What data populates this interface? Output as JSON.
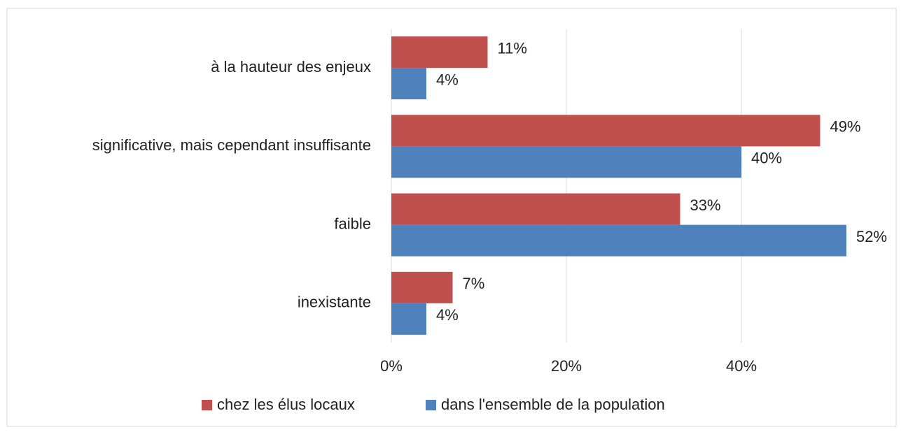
{
  "chart_data": {
    "type": "barh",
    "categories": [
      "à la hauteur des enjeux",
      "significative, mais cependant insuffisante",
      "faible",
      "inexistante"
    ],
    "series": [
      {
        "name": "chez les élus locaux",
        "color": "#c0504d",
        "values": [
          11,
          49,
          33,
          7
        ],
        "value_labels": [
          "11%",
          "49%",
          "33%",
          "7%"
        ]
      },
      {
        "name": "dans l'ensemble de la population",
        "color": "#4f81bd",
        "values": [
          4,
          40,
          52,
          4
        ],
        "value_labels": [
          "4%",
          "40%",
          "52%",
          "4%"
        ]
      }
    ],
    "xlim": [
      0,
      57
    ],
    "xticks": [
      {
        "value": 0,
        "label": "0%"
      },
      {
        "value": 20,
        "label": "20%"
      },
      {
        "value": 40,
        "label": "40%"
      }
    ],
    "grid": true,
    "legend": "bottom"
  }
}
